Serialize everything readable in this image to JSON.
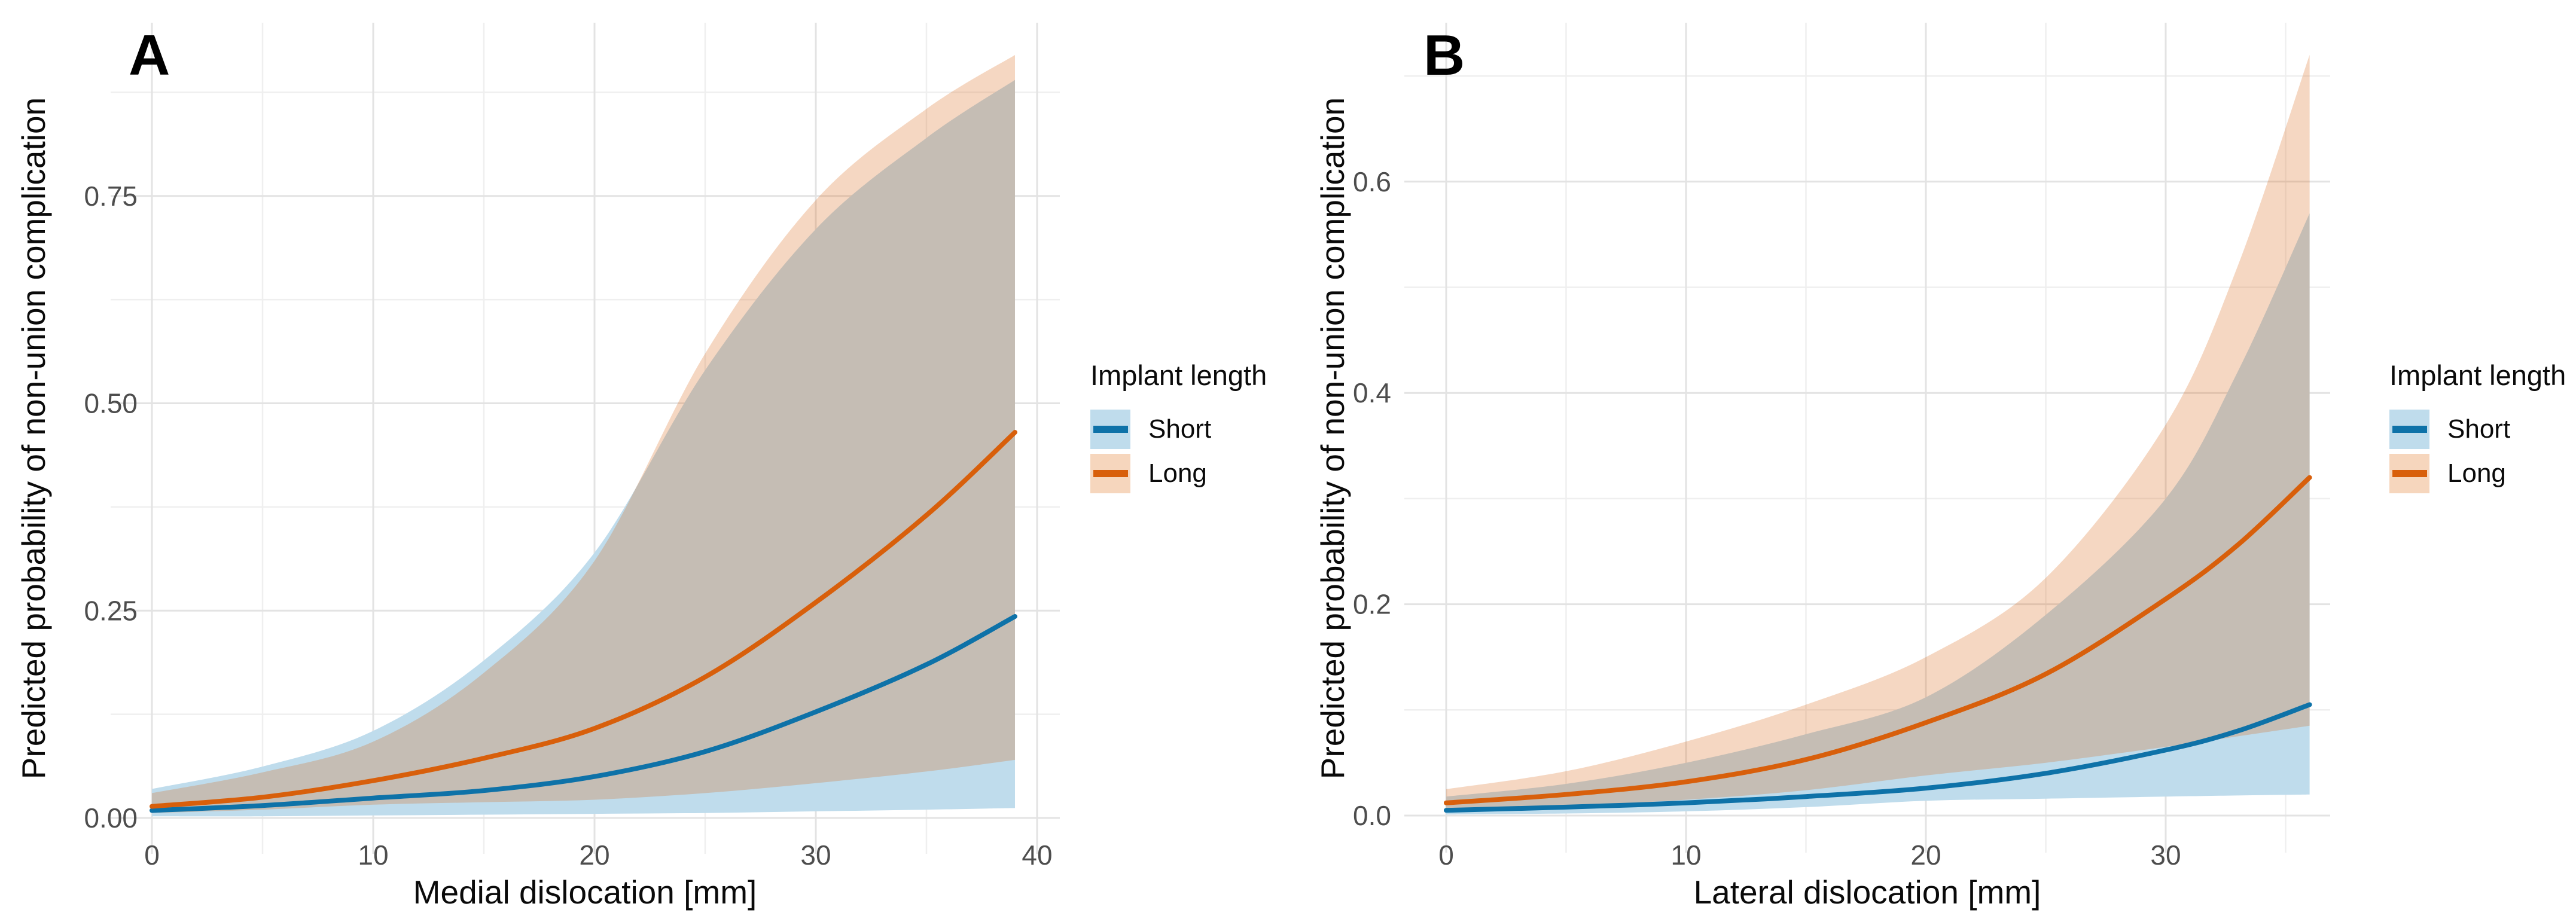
{
  "legend": {
    "title": "Implant length",
    "items": [
      {
        "label": "Short",
        "line_color": "#0E72A8",
        "fill_color": "#BFDCEC"
      },
      {
        "label": "Long",
        "line_color": "#D85F0B",
        "fill_color": "#F6D6BD"
      }
    ]
  },
  "chart_data": [
    {
      "type": "line",
      "panel_label": "A",
      "xlabel": "Medial dislocation [mm]",
      "ylabel": "Predicted probability of non-union complication",
      "xlim": [
        0,
        40
      ],
      "ylim": [
        0,
        0.75
      ],
      "grid": true,
      "legend_position": "right",
      "x_ticks": {
        "values": [
          0,
          10,
          20,
          30,
          40
        ],
        "labels": [
          "0",
          "10",
          "20",
          "30",
          "40"
        ],
        "minor": [
          5,
          15,
          25,
          35
        ]
      },
      "y_ticks": {
        "values": [
          0,
          0.25,
          0.5,
          0.75
        ],
        "labels": [
          "0.00",
          "0.25",
          "0.50",
          "0.75"
        ],
        "minor": [
          0.125,
          0.375,
          0.625,
          0.875
        ]
      },
      "x": [
        0,
        5,
        10,
        15,
        20,
        25,
        30,
        35,
        39
      ],
      "series": [
        {
          "name": "Short",
          "color": "#0E72A8",
          "ribbon_fill": "#BFDCEC",
          "values": [
            0.009,
            0.015,
            0.024,
            0.033,
            0.05,
            0.08,
            0.128,
            0.185,
            0.243
          ],
          "upper": [
            0.035,
            0.062,
            0.105,
            0.19,
            0.32,
            0.54,
            0.71,
            0.82,
            0.89
          ],
          "lower": [
            0.002,
            0.002,
            0.003,
            0.004,
            0.005,
            0.006,
            0.008,
            0.01,
            0.012
          ]
        },
        {
          "name": "Long",
          "color": "#D85F0B",
          "ribbon_fill": "rgba(216,95,11,0.25)",
          "values": [
            0.014,
            0.025,
            0.045,
            0.072,
            0.108,
            0.17,
            0.26,
            0.365,
            0.465
          ],
          "upper": [
            0.03,
            0.055,
            0.092,
            0.175,
            0.31,
            0.56,
            0.745,
            0.855,
            0.92
          ],
          "lower": [
            0.006,
            0.01,
            0.016,
            0.019,
            0.022,
            0.03,
            0.042,
            0.056,
            0.07
          ]
        }
      ]
    },
    {
      "type": "line",
      "panel_label": "B",
      "xlabel": "Lateral dislocation [mm]",
      "ylabel": "Predicted probability of non-union complication",
      "xlim": [
        0,
        37
      ],
      "ylim": [
        0,
        0.6
      ],
      "grid": true,
      "legend_position": "right",
      "x_ticks": {
        "values": [
          0,
          10,
          20,
          30
        ],
        "labels": [
          "0",
          "10",
          "20",
          "30"
        ],
        "minor": [
          5,
          15,
          25,
          35
        ]
      },
      "y_ticks": {
        "values": [
          0,
          0.2,
          0.4,
          0.6
        ],
        "labels": [
          "0.0",
          "0.2",
          "0.4",
          "0.6"
        ],
        "minor": [
          0.1,
          0.3,
          0.5,
          0.7
        ]
      },
      "x": [
        0,
        5,
        10,
        15,
        20,
        25,
        30,
        33,
        36
      ],
      "series": [
        {
          "name": "Short",
          "color": "#0E72A8",
          "ribbon_fill": "#BFDCEC",
          "values": [
            0.005,
            0.008,
            0.012,
            0.018,
            0.026,
            0.04,
            0.062,
            0.08,
            0.105
          ],
          "upper": [
            0.018,
            0.03,
            0.05,
            0.077,
            0.112,
            0.19,
            0.3,
            0.42,
            0.57
          ],
          "lower": [
            0.001,
            0.002,
            0.004,
            0.008,
            0.014,
            0.016,
            0.018,
            0.019,
            0.02
          ]
        },
        {
          "name": "Long",
          "color": "#D85F0B",
          "ribbon_fill": "rgba(216,95,11,0.25)",
          "values": [
            0.012,
            0.02,
            0.032,
            0.053,
            0.088,
            0.134,
            0.205,
            0.256,
            0.32
          ],
          "upper": [
            0.025,
            0.042,
            0.07,
            0.105,
            0.15,
            0.225,
            0.37,
            0.52,
            0.72
          ],
          "lower": [
            0.005,
            0.009,
            0.015,
            0.024,
            0.038,
            0.05,
            0.065,
            0.075,
            0.085
          ]
        }
      ]
    }
  ]
}
